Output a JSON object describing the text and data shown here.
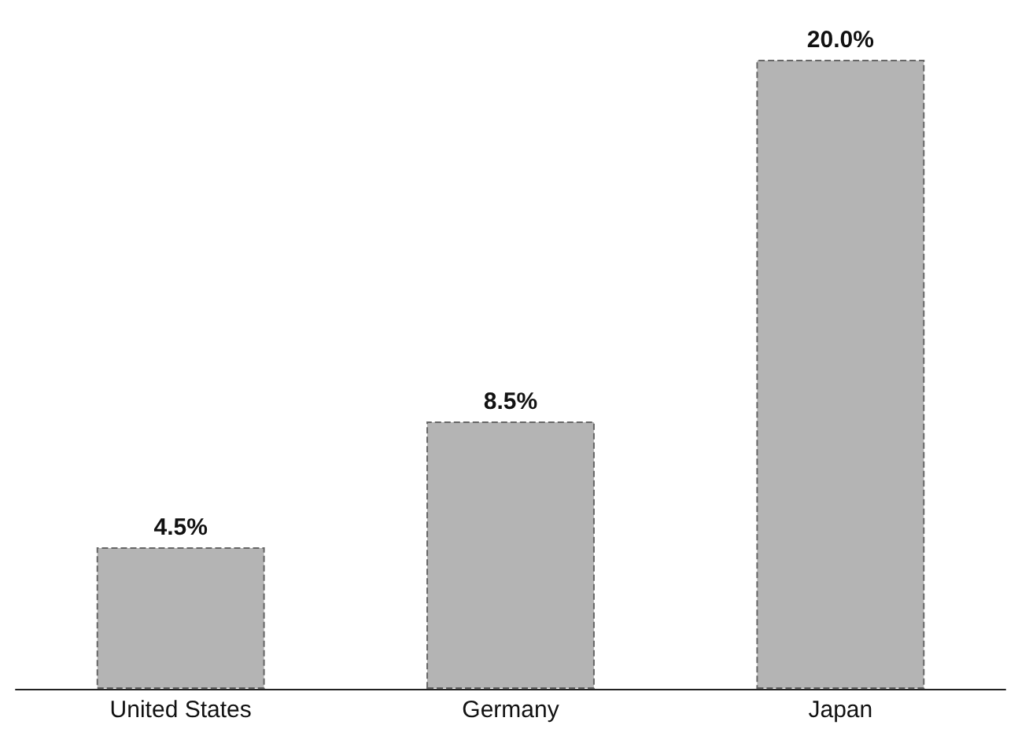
{
  "chart_data": {
    "type": "bar",
    "categories": [
      "United States",
      "Germany",
      "Japan"
    ],
    "values": [
      4.5,
      8.5,
      20.0
    ],
    "value_labels": [
      "4.5%",
      "8.5%",
      "20.0%"
    ],
    "color": "#b4b4b4"
  }
}
